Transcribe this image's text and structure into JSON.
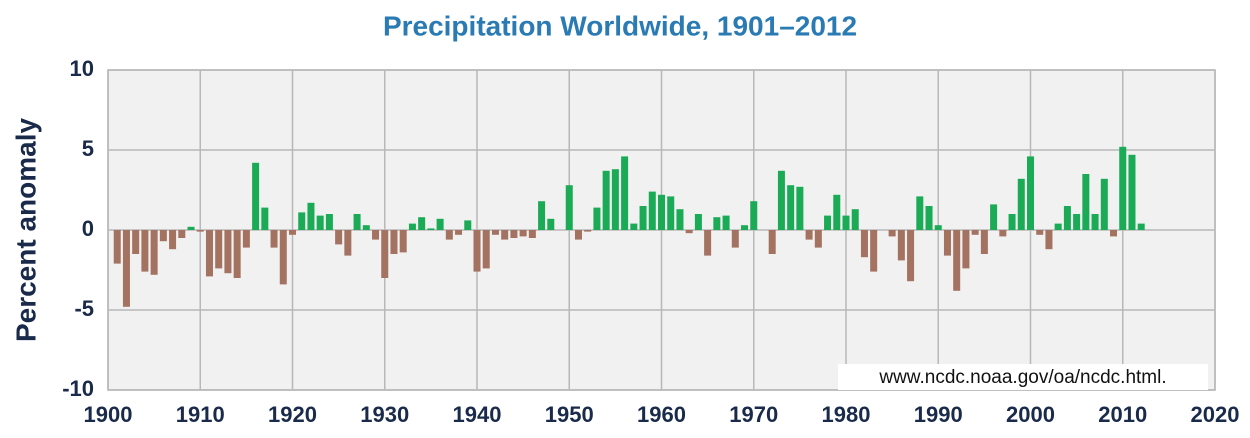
{
  "chart_data": {
    "type": "bar",
    "title": "Precipitation Worldwide, 1901–2012",
    "y_label": "Percent anomaly",
    "source": "www.ncdc.noaa.gov/oa/ncdc.html.",
    "x": [
      1901,
      1902,
      1903,
      1904,
      1905,
      1906,
      1907,
      1908,
      1909,
      1910,
      1911,
      1912,
      1913,
      1914,
      1915,
      1916,
      1917,
      1918,
      1919,
      1920,
      1921,
      1922,
      1923,
      1924,
      1925,
      1926,
      1927,
      1928,
      1929,
      1930,
      1931,
      1932,
      1933,
      1934,
      1935,
      1936,
      1937,
      1938,
      1939,
      1940,
      1941,
      1942,
      1943,
      1944,
      1945,
      1946,
      1947,
      1948,
      1949,
      1950,
      1951,
      1952,
      1953,
      1954,
      1955,
      1956,
      1957,
      1958,
      1959,
      1960,
      1961,
      1962,
      1963,
      1964,
      1965,
      1966,
      1967,
      1968,
      1969,
      1970,
      1971,
      1972,
      1973,
      1974,
      1975,
      1976,
      1977,
      1978,
      1979,
      1980,
      1981,
      1982,
      1983,
      1984,
      1985,
      1986,
      1987,
      1988,
      1989,
      1990,
      1991,
      1992,
      1993,
      1994,
      1995,
      1996,
      1997,
      1998,
      1999,
      2000,
      2001,
      2002,
      2003,
      2004,
      2005,
      2006,
      2007,
      2008,
      2009,
      2010,
      2011,
      2012
    ],
    "values": [
      -2.1,
      -4.8,
      -1.5,
      -2.6,
      -2.8,
      -0.7,
      -1.2,
      -0.5,
      0.2,
      -0.1,
      -2.9,
      -2.4,
      -2.7,
      -3.0,
      -1.1,
      4.2,
      1.4,
      -1.1,
      -3.4,
      -0.3,
      1.1,
      1.7,
      0.9,
      1.0,
      -0.9,
      -1.6,
      1.0,
      0.3,
      -0.6,
      -3.0,
      -1.5,
      -1.4,
      0.4,
      0.8,
      0.1,
      0.7,
      -0.6,
      -0.3,
      0.6,
      -2.6,
      -2.4,
      -0.3,
      -0.6,
      -0.5,
      -0.4,
      -0.5,
      1.8,
      0.7,
      0.0,
      2.8,
      -0.6,
      -0.1,
      1.4,
      3.7,
      3.8,
      4.6,
      0.4,
      1.5,
      2.4,
      2.2,
      2.1,
      1.3,
      -0.2,
      1.0,
      -1.6,
      0.8,
      0.9,
      -1.1,
      0.3,
      1.8,
      0.0,
      -1.5,
      3.7,
      2.8,
      2.7,
      -0.6,
      -1.1,
      0.9,
      2.2,
      0.9,
      1.3,
      -1.7,
      -2.6,
      0.0,
      -0.4,
      -1.9,
      -3.2,
      2.1,
      1.5,
      0.3,
      -1.6,
      -3.8,
      -2.4,
      -0.3,
      -1.5,
      1.6,
      -0.4,
      1.0,
      3.2,
      4.6,
      -0.3,
      -1.2,
      0.4,
      1.5,
      1.0,
      3.5,
      1.0,
      3.2,
      -0.4,
      5.2,
      4.7,
      0.4
    ],
    "colors": {
      "positive": "#1bab57",
      "negative": "#a47260"
    },
    "xlim": [
      1900,
      2020
    ],
    "xticks": [
      1900,
      1910,
      1920,
      1930,
      1940,
      1950,
      1960,
      1970,
      1980,
      1990,
      2000,
      2010,
      2020
    ],
    "ylim": [
      -10,
      10
    ],
    "yticks": [
      10,
      5,
      0,
      -5,
      -10
    ],
    "grid": true
  }
}
